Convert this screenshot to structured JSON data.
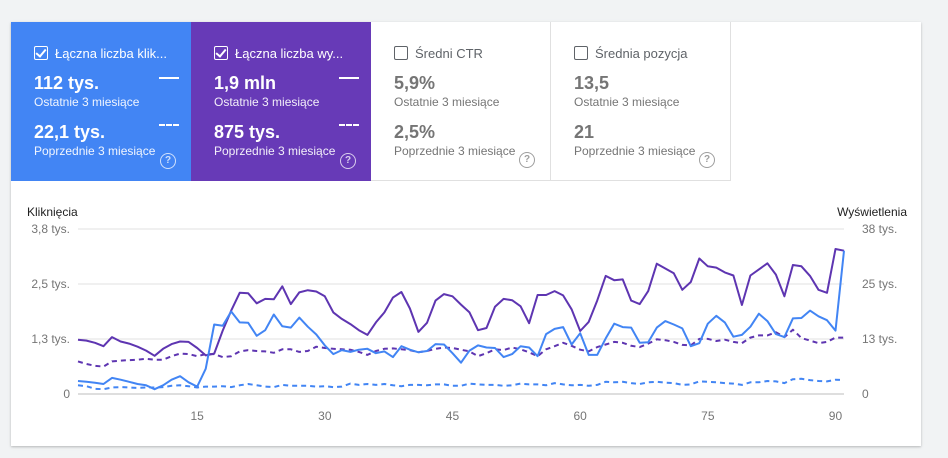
{
  "tiles": [
    {
      "title": "Łączna liczba klik...",
      "checked": true,
      "current_value": "112 tys.",
      "current_label": "Ostatnie 3 miesiące",
      "previous_value": "22,1 tys.",
      "previous_label": "Poprzednie 3 miesiące",
      "help": "?"
    },
    {
      "title": "Łączna liczba wy...",
      "checked": true,
      "current_value": "1,9 mln",
      "current_label": "Ostatnie 3 miesiące",
      "previous_value": "875 tys.",
      "previous_label": "Poprzednie 3 miesiące",
      "help": "?"
    },
    {
      "title": "Średni CTR",
      "checked": false,
      "current_value": "5,9%",
      "current_label": "Ostatnie 3 miesiące",
      "previous_value": "2,5%",
      "previous_label": "Poprzednie 3 miesiące",
      "help": "?"
    },
    {
      "title": "Średnia pozycja",
      "checked": false,
      "current_value": "13,5",
      "current_label": "Ostatnie 3 miesiące",
      "previous_value": "21",
      "previous_label": "Poprzednie 3 miesiące",
      "help": "?"
    }
  ],
  "colors": {
    "clicks": "#4285f4",
    "impressions": "#5e35b1",
    "grid": "#e0e0e0",
    "axis_text": "#757575"
  },
  "chart_data": {
    "type": "line",
    "left_axis_title": "Kliknięcia",
    "right_axis_title": "Wyświetlenia",
    "left_ticks": [
      "3,8 tys.",
      "2,5 tys.",
      "1,3 tys.",
      "0"
    ],
    "right_ticks": [
      "38 tys.",
      "25 tys.",
      "13 tys.",
      "0"
    ],
    "x_ticks": [
      "15",
      "30",
      "45",
      "60",
      "75",
      "90"
    ],
    "x_tick_values": [
      15,
      30,
      45,
      60,
      75,
      90
    ],
    "x_range": [
      1,
      91
    ],
    "y_left_range": [
      0,
      3800
    ],
    "y_right_range": [
      0,
      38000
    ],
    "series": [
      {
        "axis": "left",
        "style": "solid",
        "color": "#4285f4",
        "values": [
          300,
          280,
          260,
          230,
          370,
          330,
          280,
          230,
          200,
          110,
          200,
          330,
          410,
          270,
          170,
          580,
          1600,
          1570,
          1900,
          1650,
          1640,
          1340,
          1470,
          1830,
          1560,
          1530,
          1760,
          1550,
          1370,
          1120,
          920,
          1010,
          970,
          1020,
          1040,
          940,
          980,
          850,
          1100,
          1020,
          960,
          990,
          1150,
          1140,
          940,
          720,
          1000,
          1120,
          1070,
          1060,
          850,
          920,
          1100,
          1070,
          870,
          1380,
          1500,
          1540,
          1140,
          1400,
          900,
          900,
          1280,
          1620,
          1540,
          1530,
          1180,
          1190,
          1530,
          1680,
          1600,
          1510,
          1100,
          1170,
          1620,
          1800,
          1650,
          1320,
          1360,
          1550,
          1850,
          1680,
          1380,
          1310,
          1740,
          1750,
          1920,
          1790,
          1700,
          1460,
          3300
        ]
      },
      {
        "axis": "right",
        "style": "solid",
        "color": "#5e35b1",
        "values": [
          12500,
          12300,
          11800,
          11000,
          13100,
          12100,
          11600,
          10900,
          10000,
          8800,
          10400,
          11500,
          12100,
          12000,
          10600,
          8900,
          9300,
          14600,
          19200,
          23300,
          23200,
          20900,
          21900,
          21800,
          24800,
          20700,
          23400,
          23900,
          23600,
          22500,
          18800,
          17300,
          16100,
          14700,
          13600,
          16500,
          18800,
          22200,
          23500,
          19700,
          14300,
          16400,
          21500,
          23000,
          22500,
          20600,
          18800,
          14700,
          15200,
          20100,
          21900,
          21600,
          20200,
          16300,
          22800,
          22800,
          23700,
          22700,
          19500,
          14500,
          16600,
          21500,
          27200,
          26200,
          26400,
          21500,
          20700,
          23700,
          30000,
          28900,
          27800,
          24000,
          25800,
          31200,
          29400,
          29100,
          28000,
          27300,
          20500,
          27300,
          28700,
          30100,
          27500,
          22500,
          29700,
          29400,
          27200,
          24000,
          23300,
          33400,
          33000
        ]
      },
      {
        "axis": "left",
        "style": "dashed",
        "color": "#4285f4",
        "values": [
          200,
          180,
          120,
          110,
          150,
          160,
          150,
          140,
          150,
          150,
          160,
          190,
          200,
          180,
          150,
          170,
          170,
          180,
          160,
          200,
          230,
          200,
          170,
          160,
          210,
          190,
          190,
          190,
          170,
          180,
          160,
          170,
          240,
          210,
          230,
          210,
          230,
          200,
          180,
          210,
          210,
          200,
          220,
          220,
          190,
          190,
          240,
          220,
          210,
          210,
          190,
          200,
          240,
          220,
          220,
          200,
          250,
          220,
          200,
          210,
          190,
          210,
          280,
          270,
          280,
          250,
          230,
          270,
          280,
          260,
          250,
          210,
          220,
          290,
          280,
          270,
          250,
          240,
          210,
          270,
          270,
          300,
          290,
          250,
          340,
          350,
          320,
          300,
          290,
          330,
          320
        ]
      },
      {
        "axis": "right",
        "style": "dashed",
        "color": "#5e35b1",
        "values": [
          7500,
          6900,
          6500,
          6300,
          7500,
          7700,
          7800,
          7900,
          8100,
          7900,
          7900,
          8700,
          9300,
          9200,
          8700,
          9200,
          9200,
          8500,
          8700,
          9800,
          10100,
          9900,
          9800,
          9500,
          10300,
          10300,
          9700,
          9900,
          10900,
          10600,
          10400,
          10300,
          10200,
          9700,
          9000,
          9900,
          10400,
          10500,
          10300,
          10100,
          9600,
          9900,
          10400,
          10700,
          10600,
          10200,
          9800,
          8700,
          9400,
          10300,
          10100,
          10700,
          10300,
          9600,
          8700,
          10300,
          11000,
          11800,
          11100,
          10200,
          9800,
          10800,
          11400,
          12000,
          11800,
          11100,
          10800,
          11600,
          12600,
          12400,
          12000,
          11300,
          11200,
          12700,
          12700,
          12200,
          12500,
          12000,
          11700,
          13000,
          13500,
          13500,
          14200,
          13100,
          14800,
          12900,
          12300,
          11700,
          12000,
          13000,
          13000
        ]
      }
    ]
  }
}
